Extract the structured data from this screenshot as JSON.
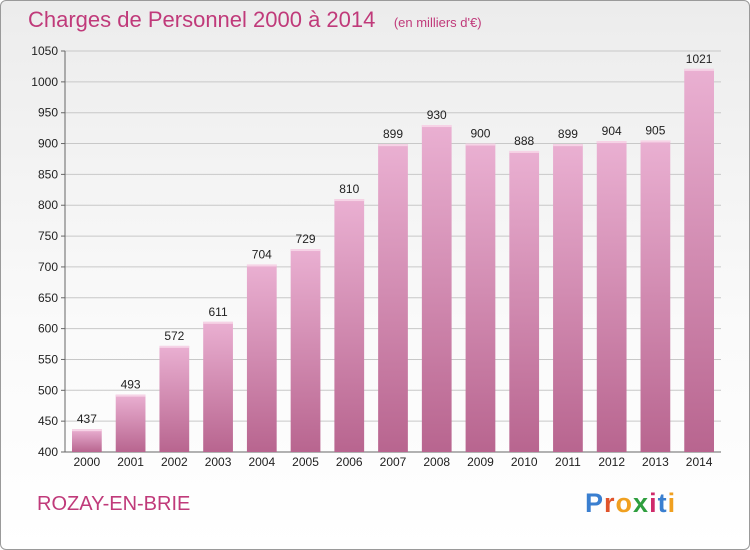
{
  "title": "Charges de Personnel 2000 à 2014",
  "subtitle": "(en milliers d'€)",
  "location": "ROZAY-EN-BRIE",
  "brand": {
    "text": "Proxiti",
    "letter_colors": [
      "#3a7fd0",
      "#e0532a",
      "#f0a020",
      "#2e9e3e",
      "#d02a6a",
      "#3a7fd0",
      "#f0a020"
    ]
  },
  "colors": {
    "title": "#c03a7a",
    "bar_top": "#eab0d2",
    "bar_bottom": "#b8658f",
    "bar_highlight": "#f6d3e6",
    "grid": "#c8c8c8"
  },
  "chart_data": {
    "type": "bar",
    "categories": [
      "2000",
      "2001",
      "2002",
      "2003",
      "2004",
      "2005",
      "2006",
      "2007",
      "2008",
      "2009",
      "2010",
      "2011",
      "2012",
      "2013",
      "2014"
    ],
    "values": [
      437,
      493,
      572,
      611,
      704,
      729,
      810,
      899,
      930,
      900,
      888,
      899,
      904,
      905,
      1021
    ],
    "ylim": [
      400,
      1050
    ],
    "yticks": [
      400,
      450,
      500,
      550,
      600,
      650,
      700,
      750,
      800,
      850,
      900,
      950,
      1000,
      1050
    ],
    "grid": true,
    "data_labels": true
  }
}
